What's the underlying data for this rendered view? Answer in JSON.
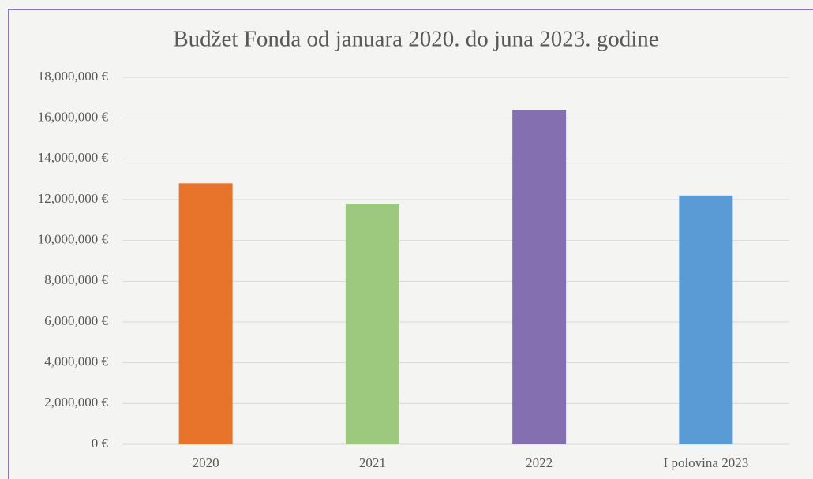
{
  "chart_data": {
    "type": "bar",
    "title": "Budžet Fonda od januara 2020. do juna 2023. godine",
    "categories": [
      "2020",
      "2021",
      "2022",
      "I polovina 2023"
    ],
    "values": [
      12800000,
      11800000,
      16400000,
      12200000
    ],
    "colors": [
      "#e8742c",
      "#9dc97f",
      "#8470b0",
      "#5b9bd5"
    ],
    "ylim": [
      0,
      18000000
    ],
    "yticks": [
      {
        "value": 0,
        "label": "0 €"
      },
      {
        "value": 2000000,
        "label": "2,000,000 €"
      },
      {
        "value": 4000000,
        "label": "4,000,000 €"
      },
      {
        "value": 6000000,
        "label": "6,000,000 €"
      },
      {
        "value": 8000000,
        "label": "8,000,000 €"
      },
      {
        "value": 10000000,
        "label": "10,000,000 €"
      },
      {
        "value": 12000000,
        "label": "12,000,000 €"
      },
      {
        "value": 14000000,
        "label": "14,000,000 €"
      },
      {
        "value": 16000000,
        "label": "16,000,000 €"
      },
      {
        "value": 18000000,
        "label": "18,000,000 €"
      }
    ],
    "grid": true
  }
}
